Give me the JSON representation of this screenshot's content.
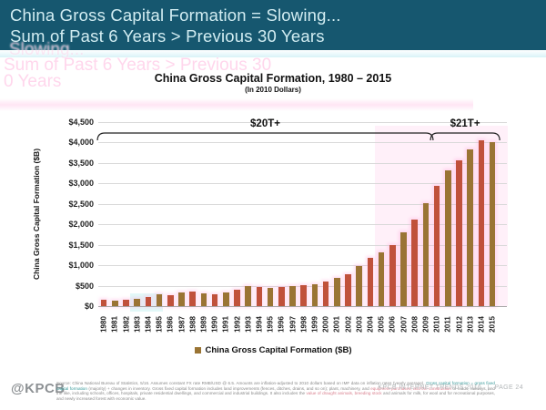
{
  "header": {
    "title_line1": "China Gross Capital Formation = Slowing...",
    "title_line2": "Sum of Past 6 Years > Previous 30 Years"
  },
  "ghost": {
    "line1": "Slowing...",
    "line2": "Sum of Past 6 Years > Previous 30",
    "line3": "0 Years"
  },
  "chart": {
    "title": "China Gross Capital Formation, 1980 – 2015",
    "subtitle": "(In 2010 Dollars)",
    "y_axis_title": "China Gross Capital Formation ($B)",
    "legend_label": "China Gross Capital Formation ($B)"
  },
  "chart_data": {
    "type": "bar",
    "title": "China Gross Capital Formation, 1980 – 2015",
    "subtitle": "(In 2010 Dollars)",
    "xlabel": "",
    "ylabel": "China Gross Capital Formation ($B)",
    "ylim": [
      0,
      4500
    ],
    "grid": true,
    "legend_position": "bottom",
    "y_ticks": [
      "$0",
      "$500",
      "$1,000",
      "$1,500",
      "$2,000",
      "$2,500",
      "$3,000",
      "$3,500",
      "$4,000",
      "$4,500"
    ],
    "categories": [
      "1980",
      "1981",
      "1982",
      "1983",
      "1984",
      "1985",
      "1986",
      "1987",
      "1988",
      "1989",
      "1990",
      "1991",
      "1992",
      "1993",
      "1994",
      "1995",
      "1996",
      "1997",
      "1998",
      "1999",
      "2000",
      "2001",
      "2002",
      "2003",
      "2004",
      "2005",
      "2006",
      "2007",
      "2008",
      "2009",
      "2010",
      "2011",
      "2012",
      "2013",
      "2014",
      "2015"
    ],
    "series": [
      {
        "name": "China Gross Capital Formation ($B)",
        "values": [
          150,
          135,
          150,
          175,
          225,
          285,
          275,
          325,
          350,
          310,
          290,
          325,
          395,
          490,
          470,
          455,
          470,
          495,
          520,
          545,
          595,
          680,
          780,
          990,
          1185,
          1320,
          1500,
          1810,
          2110,
          2510,
          2940,
          3320,
          3560,
          3820,
          4050,
          4020
        ]
      }
    ],
    "annotations": [
      {
        "label": "$20T+",
        "from_year": 1980,
        "to_year": 2009
      },
      {
        "label": "$21T+",
        "from_year": 2010,
        "to_year": 2015
      }
    ]
  },
  "colors": {
    "header_bg": "#16576F",
    "header_text": "#d2edf2",
    "bar_red": "#c0513b",
    "bar_brown": "#9a7434",
    "gridline": "#d9d9d9",
    "legend_swatch": "#9a7434"
  },
  "footer": {
    "logo": "@KPCB",
    "credit": "KPCB INTERNET TRENDS 2016",
    "separator": "|",
    "page": "PAGE 24",
    "footnote_segments": [
      {
        "color": "gray",
        "text": "Source: China National Bureau of Statistics, 5/16. Assumes constant FX rate RMB/USD @ 6.5. Amounts are inflation-adjusted to 2010 dollars based on IMF data on inflation rates (yearly average). "
      },
      {
        "color": "teal",
        "text": "Gross capital formation = gross fixed capital formation"
      },
      {
        "color": "gray",
        "text": " (majority) + changes in inventory. Gross fixed capital formation includes land improvements (fences, ditches, drains, and so on); plant, machinery, and "
      },
      {
        "color": "red",
        "text": "equipment purchases; and the construction"
      },
      {
        "color": "gray",
        "text": " of roads, railways, and the like, including schools, offices, hospitals, private residential dwellings, and commercial and industrial buildings. It also includes the "
      },
      {
        "color": "red",
        "text": "value of draught animals, breeding stock"
      },
      {
        "color": "gray",
        "text": " and animals for milk, for wool and for recreational purposes, and newly increased forest with economic value."
      }
    ]
  }
}
